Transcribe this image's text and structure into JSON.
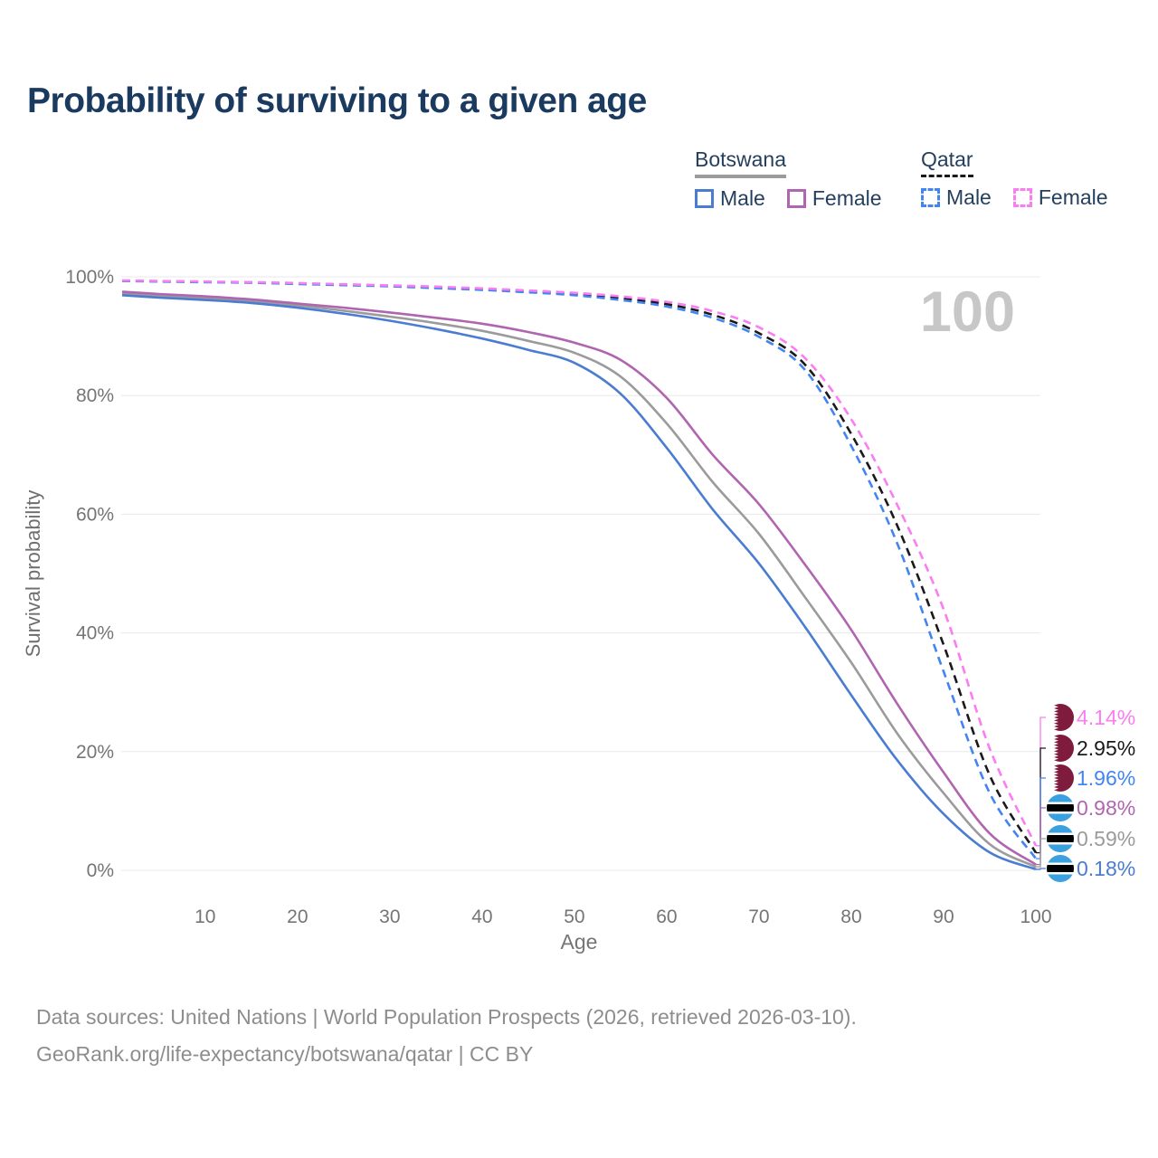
{
  "page": {
    "title": "Probability of surviving to a given age",
    "footer_line1": "Data sources: United Nations | World Population Prospects (2026, retrieved 2026-03-10).",
    "footer_line2": "GeoRank.org/life-expectancy/botswana/qatar | CC BY"
  },
  "legend": {
    "groups": [
      {
        "name": "Botswana",
        "line_style": "solid",
        "underline_color": "#9b9b9b",
        "items": [
          {
            "label": "Male",
            "color": "#4a7cd1"
          },
          {
            "label": "Female",
            "color": "#b065b0"
          }
        ]
      },
      {
        "name": "Qatar",
        "line_style": "dashed",
        "underline_color": "#1a1a1a",
        "items": [
          {
            "label": "Male",
            "color": "#4285f0"
          },
          {
            "label": "Female",
            "color": "#fb7df2"
          }
        ]
      }
    ]
  },
  "chart_data": {
    "type": "line",
    "title": "Probability of surviving to a given age",
    "xlabel": "Age",
    "ylabel": "Survival probability",
    "xlim": [
      1,
      100
    ],
    "ylim": [
      0,
      100
    ],
    "grid": true,
    "legend_position": "top-right",
    "annotation": {
      "text": "100",
      "meaning": "highlighted age 100",
      "color": "#c7c7c7"
    },
    "x_ticks": [
      10,
      20,
      30,
      40,
      50,
      60,
      70,
      80,
      90,
      100
    ],
    "y_ticks": [
      {
        "value": 0,
        "label": "0%"
      },
      {
        "value": 20,
        "label": "20%"
      },
      {
        "value": 40,
        "label": "40%"
      },
      {
        "value": 60,
        "label": "60%"
      },
      {
        "value": 80,
        "label": "80%"
      },
      {
        "value": 100,
        "label": "100%"
      }
    ],
    "ages": [
      1,
      5,
      10,
      15,
      20,
      25,
      30,
      35,
      40,
      45,
      50,
      55,
      60,
      65,
      70,
      75,
      80,
      85,
      90,
      95,
      100
    ],
    "series": [
      {
        "id": "botswana-total",
        "country": "Botswana",
        "sex": "Both",
        "color": "#9b9b9b",
        "dash": false,
        "flag": "botswana",
        "end_label": "0.59%",
        "values": [
          97.2,
          96.8,
          96.4,
          95.9,
          95.2,
          94.3,
          93.3,
          92.2,
          90.9,
          89.2,
          87.2,
          83.2,
          75.3,
          65.4,
          56.7,
          46.0,
          35.0,
          23.0,
          13.0,
          4.4,
          0.59
        ]
      },
      {
        "id": "botswana-male",
        "country": "Botswana",
        "sex": "Male",
        "color": "#4a7cd1",
        "dash": false,
        "flag": "botswana",
        "end_label": "0.18%",
        "values": [
          96.9,
          96.5,
          96.1,
          95.6,
          94.8,
          93.8,
          92.6,
          91.2,
          89.6,
          87.7,
          85.5,
          80.3,
          71.2,
          60.8,
          51.7,
          41.0,
          29.5,
          18.5,
          9.5,
          3.0,
          0.18
        ]
      },
      {
        "id": "botswana-female",
        "country": "Botswana",
        "sex": "Female",
        "color": "#b065b0",
        "dash": false,
        "flag": "botswana",
        "end_label": "0.98%",
        "values": [
          97.5,
          97.1,
          96.7,
          96.2,
          95.5,
          94.8,
          94.0,
          93.1,
          92.1,
          90.7,
          88.9,
          86.0,
          79.6,
          70.0,
          61.7,
          51.5,
          40.5,
          28.0,
          16.5,
          6.2,
          0.98
        ]
      },
      {
        "id": "qatar-total",
        "country": "Qatar",
        "sex": "Both",
        "color": "#1a1a1a",
        "dash": true,
        "flag": "qatar",
        "end_label": "2.95%",
        "values": [
          99.35,
          99.25,
          99.15,
          99.05,
          98.85,
          98.65,
          98.45,
          98.2,
          97.9,
          97.55,
          97.1,
          96.4,
          95.4,
          93.6,
          90.5,
          85.2,
          73.5,
          58.0,
          38.0,
          16.0,
          2.95
        ]
      },
      {
        "id": "qatar-male",
        "country": "Qatar",
        "sex": "Male",
        "color": "#4285f0",
        "dash": true,
        "flag": "qatar",
        "end_label": "1.96%",
        "values": [
          99.3,
          99.2,
          99.1,
          99.0,
          98.8,
          98.6,
          98.4,
          98.1,
          97.8,
          97.4,
          96.9,
          96.1,
          95.0,
          93.1,
          89.9,
          84.3,
          71.5,
          55.0,
          33.5,
          13.0,
          1.96
        ]
      },
      {
        "id": "qatar-female",
        "country": "Qatar",
        "sex": "Female",
        "color": "#fb7df2",
        "dash": true,
        "flag": "qatar",
        "end_label": "4.14%",
        "values": [
          99.4,
          99.3,
          99.2,
          99.1,
          98.95,
          98.75,
          98.55,
          98.35,
          98.05,
          97.7,
          97.3,
          96.7,
          95.8,
          94.2,
          91.5,
          86.3,
          76.0,
          61.5,
          44.0,
          20.5,
          4.14
        ]
      }
    ],
    "flag_colors": {
      "qatar_maroon": "#7f1c3e",
      "botswana_blue": "#3aa0e0",
      "stripe_black": "#000000",
      "stripe_white": "#ffffff"
    }
  }
}
